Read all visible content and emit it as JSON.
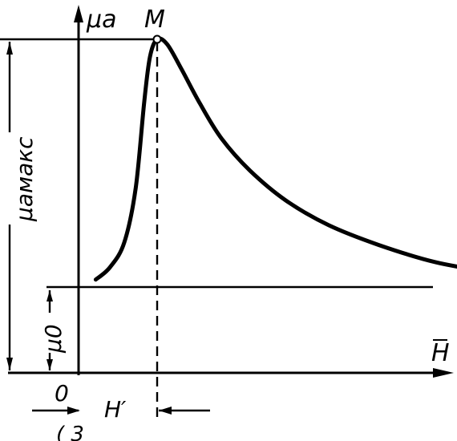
{
  "chart_data": {
    "type": "line",
    "title": "",
    "ylabel": "μa",
    "xlabel": "H",
    "origin_label": "0",
    "points": {
      "peak_label": "M"
    },
    "annotations": {
      "mu_max_label": "μaмакс",
      "mu_zero_label": "μ0",
      "h_prime_label": "H′",
      "fig_caption_partial": "( 3"
    },
    "series": [
      {
        "values_norm": [
          [
            0.12,
            0.03
          ],
          [
            0.22,
            0.08
          ],
          [
            0.32,
            0.18
          ],
          [
            0.4,
            0.4
          ],
          [
            0.46,
            0.75
          ],
          [
            0.5,
            0.93
          ],
          [
            0.55,
            1.0
          ],
          [
            0.62,
            0.98
          ],
          [
            0.72,
            0.88
          ],
          [
            0.85,
            0.74
          ],
          [
            1.0,
            0.6
          ],
          [
            1.2,
            0.47
          ],
          [
            1.45,
            0.35
          ],
          [
            1.75,
            0.25
          ],
          [
            2.1,
            0.17
          ],
          [
            2.5,
            0.1
          ],
          [
            2.9,
            0.06
          ],
          [
            3.2,
            0.04
          ]
        ]
      }
    ]
  }
}
